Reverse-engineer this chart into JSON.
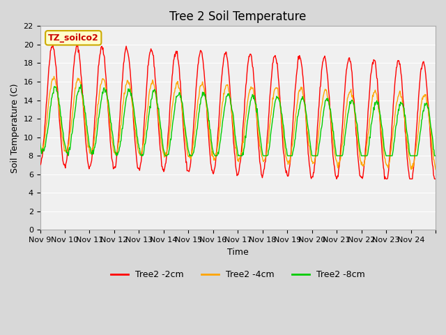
{
  "title": "Tree 2 Soil Temperature",
  "ylabel": "Soil Temperature (C)",
  "xlabel": "Time",
  "annotation": "TZ_soilco2",
  "ylim": [
    0,
    22
  ],
  "yticks": [
    0,
    2,
    4,
    6,
    8,
    10,
    12,
    14,
    16,
    18,
    20,
    22
  ],
  "xtick_labels": [
    "Nov 9",
    "Nov 10",
    "Nov 11",
    "Nov 12",
    "Nov 13",
    "Nov 14",
    "Nov 15",
    "Nov 16",
    "Nov 17",
    "Nov 18",
    "Nov 19",
    "Nov 20",
    "Nov 21",
    "Nov 22",
    "Nov 23",
    "Nov 24",
    ""
  ],
  "legend_labels": [
    "Tree2 -2cm",
    "Tree2 -4cm",
    "Tree2 -8cm"
  ],
  "line_colors": [
    "#ff0000",
    "#ffa500",
    "#00cc00"
  ],
  "fig_facecolor": "#d8d8d8",
  "plot_bg_color": "#f0f0f0",
  "n_days": 16,
  "points_per_day": 48,
  "title_fontsize": 12,
  "label_fontsize": 9,
  "tick_fontsize": 8
}
